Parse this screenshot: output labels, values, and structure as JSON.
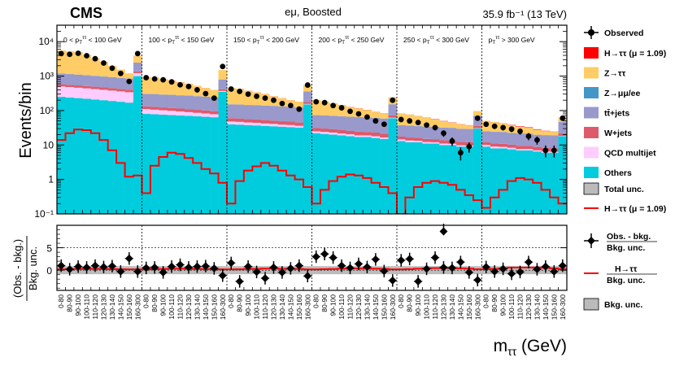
{
  "chart_data": {
    "type": "bar",
    "title": "CMS",
    "channel": "eμ, Boosted",
    "luminosity": "35.9 fb⁻¹ (13 TeV)",
    "ylabel": "Events/bin",
    "ratio_ylabel_num": "(Obs. - bkg.)",
    "ratio_ylabel_den": "Bkg. unc.",
    "xlabel": "mττ (GeV)",
    "y_scale": "log",
    "ylim": [
      0.1,
      30000
    ],
    "y_tick_labels": [
      "10⁻¹",
      "1",
      "10",
      "10²",
      "10³",
      "10⁴"
    ],
    "ratio_ylim": [
      -4.5,
      10
    ],
    "ratio_tick_labels": [
      "0",
      "5"
    ],
    "mass_bins": [
      "0-80",
      "80-90",
      "90-100",
      "100-110",
      "110-120",
      "120-130",
      "130-140",
      "140-150",
      "150-160",
      "160-300"
    ],
    "regions": [
      {
        "label": "0 < pT^ττ < 100 GeV",
        "lo": "0",
        "hi": "100"
      },
      {
        "label": "100 < pT^ττ < 150 GeV",
        "lo": "100",
        "hi": "150"
      },
      {
        "label": "150 < pT^ττ < 200 GeV",
        "lo": "150",
        "hi": "200"
      },
      {
        "label": "200 < pT^ττ < 250 GeV",
        "lo": "200",
        "hi": "250"
      },
      {
        "label": "250 < pT^ττ < 300 GeV",
        "lo": "250",
        "hi": "300"
      },
      {
        "label": "pT^ττ > 300 GeV",
        "lo": "",
        "hi": "300"
      }
    ],
    "series": [
      {
        "name": "H→ττ (μ = 1.09)",
        "color": "#ff0000",
        "values": [
          14,
          22,
          28,
          27,
          22,
          14,
          7,
          3,
          1.2,
          1.3,
          0.4,
          2.5,
          4.5,
          6.0,
          5.5,
          4.2,
          3.0,
          2.0,
          1.5,
          0.8,
          0.2,
          0.9,
          1.8,
          2.4,
          3.0,
          2.5,
          1.8,
          1.3,
          1.0,
          0.6,
          0.2,
          0.5,
          0.9,
          1.2,
          1.4,
          1.3,
          1.1,
          0.8,
          0.6,
          0.4,
          0.1,
          0.3,
          0.6,
          0.8,
          0.9,
          0.8,
          0.7,
          0.5,
          0.35,
          0.25,
          0.15,
          0.3,
          0.5,
          0.9,
          1.1,
          1.0,
          0.8,
          0.5,
          0.3,
          0.2
        ]
      },
      {
        "name": "Z→ττ",
        "color": "#ffcc66",
        "values": [
          4300,
          4000,
          3800,
          3000,
          2200,
          1600,
          1000,
          650,
          350,
          1500,
          650,
          600,
          520,
          450,
          380,
          320,
          250,
          200,
          150,
          700,
          300,
          280,
          230,
          190,
          160,
          120,
          95,
          70,
          55,
          200,
          130,
          110,
          90,
          75,
          60,
          50,
          40,
          30,
          24,
          90,
          45,
          40,
          33,
          27,
          22,
          17,
          13,
          10,
          8,
          25,
          25,
          22,
          18,
          15,
          12,
          10,
          8,
          6,
          5,
          15
        ]
      },
      {
        "name": "Z→μμ/ee",
        "color": "#4496c8",
        "values": [
          15,
          14,
          13,
          12,
          10,
          9,
          8,
          7,
          6,
          12,
          4,
          4,
          3.5,
          3,
          3,
          2.5,
          2,
          2,
          1.5,
          4,
          1.5,
          1.4,
          1.3,
          1.2,
          1.1,
          1,
          0.9,
          0.8,
          0.7,
          1.5,
          0.6,
          0.6,
          0.5,
          0.5,
          0.4,
          0.4,
          0.4,
          0.3,
          0.3,
          0.6,
          0.3,
          0.3,
          0.3,
          0.2,
          0.2,
          0.2,
          0.2,
          0.2,
          0.15,
          0.3,
          0.2,
          0.2,
          0.2,
          0.15,
          0.15,
          0.15,
          0.1,
          0.1,
          0.1,
          0.2
        ]
      },
      {
        "name": "tt̄+jets",
        "color": "#9999cc",
        "values": [
          600,
          580,
          560,
          540,
          520,
          500,
          480,
          460,
          440,
          1100,
          170,
          170,
          165,
          165,
          160,
          160,
          155,
          150,
          145,
          380,
          90,
          90,
          88,
          88,
          85,
          85,
          82,
          80,
          78,
          180,
          42,
          42,
          41,
          41,
          40,
          40,
          39,
          38,
          37,
          80,
          20,
          20,
          19,
          19,
          19,
          18,
          18,
          17,
          17,
          35,
          13,
          13,
          13,
          12,
          12,
          12,
          11,
          11,
          11,
          25
        ]
      },
      {
        "name": "W+jets",
        "color": "#de5a6a",
        "values": [
          80,
          78,
          76,
          74,
          72,
          70,
          68,
          66,
          64,
          140,
          22,
          22,
          21,
          21,
          20,
          20,
          19,
          19,
          18,
          45,
          12,
          12,
          11,
          11,
          11,
          10,
          10,
          10,
          9,
          20,
          6,
          6,
          6,
          5.5,
          5.5,
          5.5,
          5,
          5,
          5,
          10,
          3,
          3,
          3,
          2.8,
          2.8,
          2.8,
          2.6,
          2.6,
          2.5,
          5,
          2,
          2,
          2,
          1.9,
          1.9,
          1.9,
          1.8,
          1.8,
          1.7,
          3.5
        ]
      },
      {
        "name": "QCD multijet",
        "color": "#ffccff",
        "values": [
          250,
          240,
          230,
          220,
          210,
          200,
          190,
          180,
          170,
          220,
          30,
          28,
          26,
          24,
          22,
          20,
          18,
          16,
          14,
          20,
          8,
          8,
          7,
          7,
          6,
          6,
          5,
          5,
          4,
          6,
          3,
          3,
          3,
          2.5,
          2.5,
          2,
          2,
          2,
          1.5,
          2,
          1.5,
          1.5,
          1.2,
          1.2,
          1,
          1,
          0.8,
          0.8,
          0.6,
          0.8,
          1,
          1,
          0.8,
          0.8,
          0.6,
          0.6,
          0.5,
          0.5,
          0.4,
          0.5
        ]
      },
      {
        "name": "Others",
        "color": "#00ccdd",
        "values": [
          250,
          240,
          230,
          220,
          210,
          200,
          190,
          180,
          170,
          1000,
          80,
          78,
          76,
          74,
          72,
          70,
          68,
          66,
          64,
          350,
          40,
          39,
          38,
          37,
          36,
          35,
          34,
          33,
          32,
          150,
          22,
          21,
          20,
          19,
          18,
          17,
          17,
          16,
          15,
          60,
          13,
          12,
          12,
          11,
          11,
          10,
          10,
          9,
          9,
          30,
          9,
          8,
          8,
          7.5,
          7,
          7,
          6.5,
          6,
          6,
          18
        ]
      }
    ],
    "observed": [
      4500,
      4300,
      4600,
      3900,
      3200,
      2400,
      1700,
      1200,
      700,
      4500,
      900,
      830,
      780,
      680,
      560,
      500,
      400,
      310,
      230,
      1900,
      420,
      360,
      300,
      260,
      230,
      200,
      160,
      140,
      110,
      550,
      180,
      170,
      140,
      120,
      95,
      80,
      65,
      50,
      40,
      200,
      55,
      50,
      45,
      38,
      32,
      22,
      13,
      6,
      9,
      60,
      40,
      35,
      32,
      29,
      25,
      18,
      14,
      7,
      7,
      60
    ],
    "ratio_observed": [
      1.0,
      0.2,
      0.8,
      0.6,
      1.0,
      0.7,
      0.9,
      -0.3,
      2.6,
      -0.3,
      0.5,
      0.6,
      -0.5,
      0.8,
      1.2,
      0.6,
      0.8,
      0.9,
      0.4,
      -1.2,
      1.6,
      -2.5,
      0.8,
      -0.4,
      -1.8,
      0.6,
      -0.5,
      0.4,
      1.0,
      -1.3,
      3.0,
      3.6,
      2.8,
      1.0,
      0.5,
      1.4,
      0.7,
      2.4,
      -0.2,
      -2.3,
      2.2,
      2.5,
      -2.5,
      0.3,
      2.8,
      0.6,
      0.5,
      1.8,
      -0.5,
      -2.2,
      0.7,
      -0.3,
      0.3,
      -0.8,
      -0.4,
      1.8,
      0.2,
      0.8,
      -0.3,
      1.0
    ],
    "legend": {
      "observed": "Observed",
      "total_unc": "Total unc.",
      "signal_line": "H→ττ (μ = 1.09)",
      "ratio_obs_top": "Obs. - bkg.",
      "ratio_obs_bottom": "Bkg. unc.",
      "ratio_sig_top": "H→ττ",
      "ratio_sig_bottom": "Bkg. unc.",
      "ratio_band": "Bkg. unc."
    },
    "colors": {
      "signal": "#ff0000",
      "unc_band": "#bbbbbb",
      "observed": "#000000"
    }
  }
}
